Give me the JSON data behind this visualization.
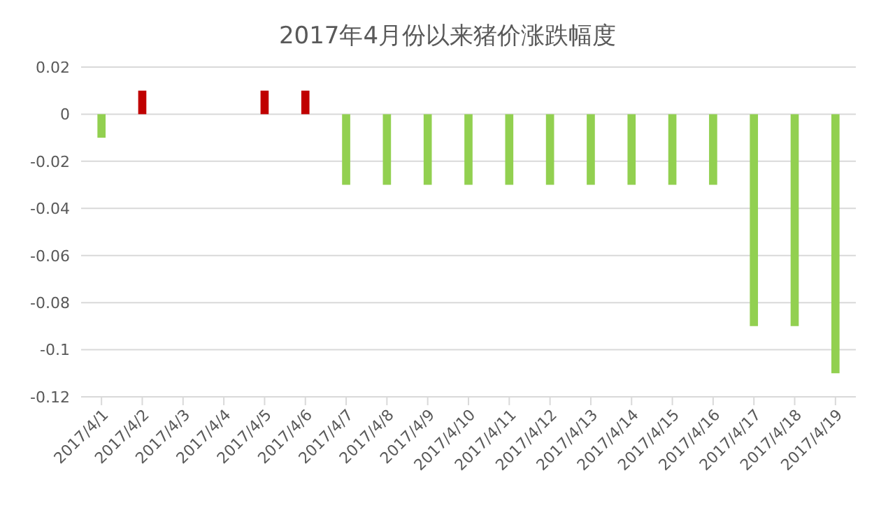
{
  "chart_data": {
    "type": "bar",
    "title": "2017年4月份以来猪价涨跌幅度",
    "categories": [
      "2017/4/1",
      "2017/4/2",
      "2017/4/3",
      "2017/4/4",
      "2017/4/5",
      "2017/4/6",
      "2017/4/7",
      "2017/4/8",
      "2017/4/9",
      "2017/4/10",
      "2017/4/11",
      "2017/4/12",
      "2017/4/13",
      "2017/4/14",
      "2017/4/15",
      "2017/4/16",
      "2017/4/17",
      "2017/4/18",
      "2017/4/19"
    ],
    "values": [
      -0.01,
      0.01,
      0,
      0,
      0.01,
      0.01,
      -0.03,
      -0.03,
      -0.03,
      -0.03,
      -0.03,
      -0.03,
      -0.03,
      -0.03,
      -0.03,
      -0.03,
      -0.09,
      -0.09,
      -0.11
    ],
    "colors": [
      "#92d050",
      "#c00000",
      "#92d050",
      "#92d050",
      "#c00000",
      "#c00000",
      "#92d050",
      "#92d050",
      "#92d050",
      "#92d050",
      "#92d050",
      "#92d050",
      "#92d050",
      "#92d050",
      "#92d050",
      "#92d050",
      "#92d050",
      "#92d050",
      "#92d050"
    ],
    "ylim": [
      -0.12,
      0.02
    ],
    "yticks": [
      0.02,
      0,
      -0.02,
      -0.04,
      -0.06,
      -0.08,
      -0.1,
      -0.12
    ],
    "grid": "y",
    "legend": false
  }
}
